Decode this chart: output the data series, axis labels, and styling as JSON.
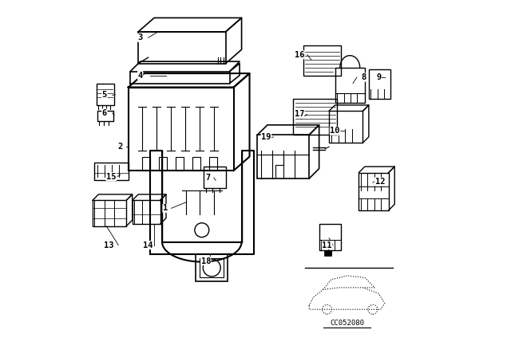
{
  "title": "",
  "background_color": "#ffffff",
  "line_color": "#000000",
  "fig_width": 6.4,
  "fig_height": 4.48,
  "dpi": 100
}
